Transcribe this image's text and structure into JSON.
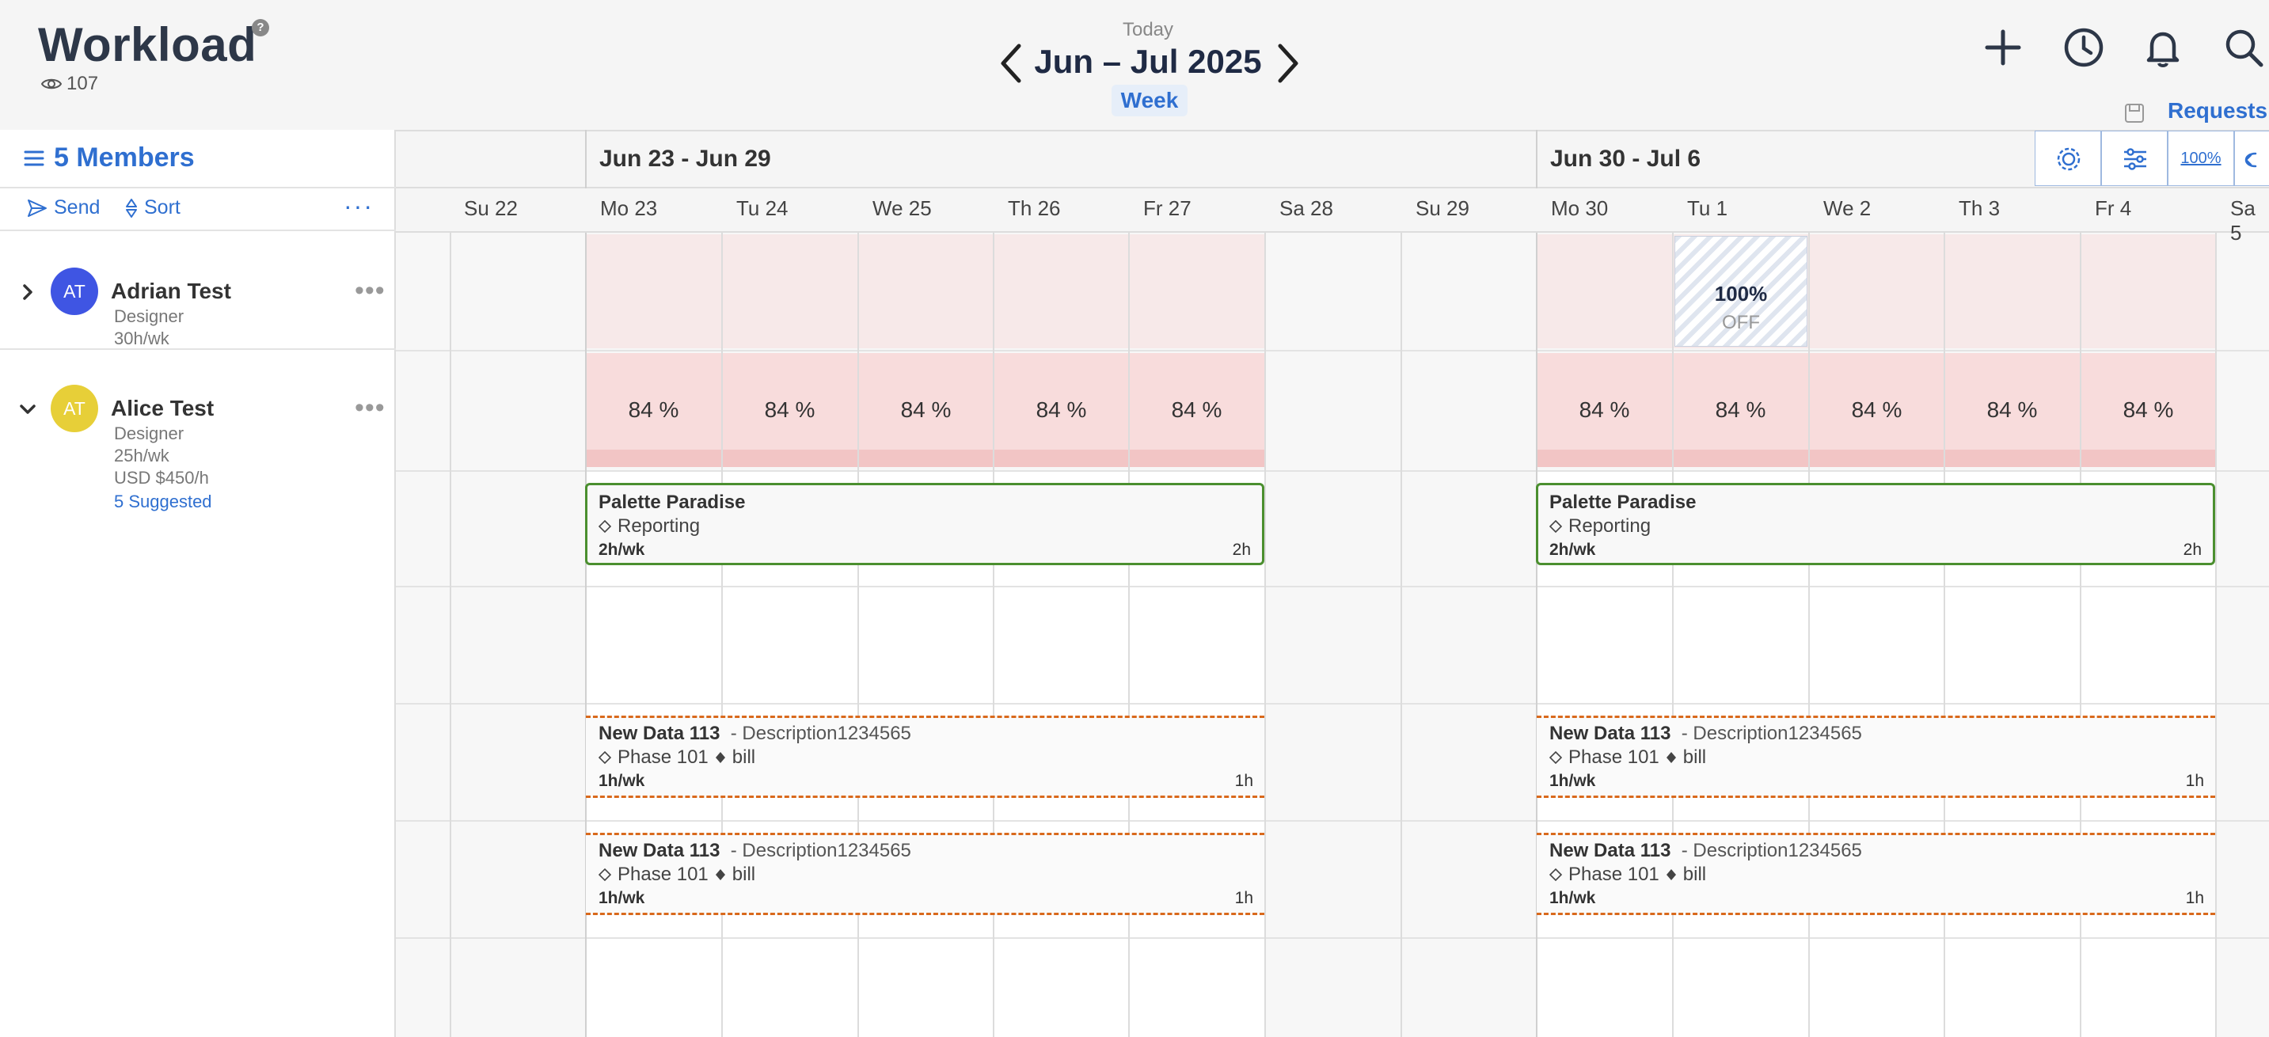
{
  "header": {
    "title": "Workload",
    "help": "?",
    "views": "107",
    "today": "Today",
    "range": "Jun – Jul 2025",
    "week": "Week",
    "requests": "Requests"
  },
  "left": {
    "members_title": "5 Members",
    "send": "Send",
    "sort": "Sort",
    "more": "···"
  },
  "members": [
    {
      "initials": "AT",
      "name": "Adrian Test",
      "role": "Designer",
      "capacity": "30h/wk",
      "color": "#3f55e3"
    },
    {
      "initials": "AT",
      "name": "Alice Test",
      "role": "Designer",
      "capacity": "25h/wk",
      "rate": "USD $450/h",
      "suggested": "5 Suggested",
      "color": "#e7cf38"
    }
  ],
  "weeks": [
    "Jun 23 - Jun 29",
    "Jun 30 - Jul 6"
  ],
  "days": [
    "Su 22",
    "Mo 23",
    "Tu 24",
    "We 25",
    "Th 26",
    "Fr 27",
    "Sa 28",
    "Su 29",
    "Mo 30",
    "Tu 1",
    "We 2",
    "Th 3",
    "Fr 4",
    "Sa 5"
  ],
  "capacity": {
    "pct": "84 %",
    "off_pct": "100%",
    "off_label": "OFF",
    "zoom": "100%"
  },
  "tasks": {
    "green": {
      "title": "Palette Paradise",
      "phase": "Reporting",
      "hours": "2h/wk",
      "right": "2h"
    },
    "orange": {
      "title": "New Data 113",
      "desc": "- Description1234565",
      "phase": "Phase 101",
      "tag": "bill",
      "hours": "1h/wk",
      "right": "1h"
    }
  },
  "colors": {
    "accent": "#2f6fd0",
    "green_border": "#4b8f2f",
    "orange_border": "#d9691c",
    "overcapacity": "#f8dcdc"
  }
}
